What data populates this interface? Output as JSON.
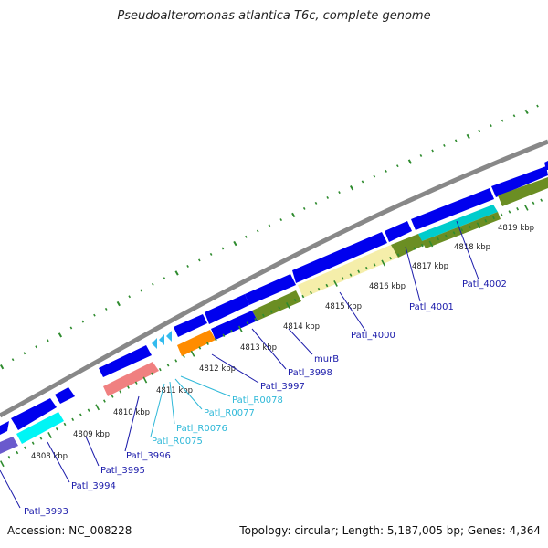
{
  "title": "Pseudoalteromonas atlantica T6c, complete genome",
  "accession": "Accession: NC_008228",
  "summary": "Topology: circular; Length: 5,187,005 bp; Genes: 4,364",
  "colors": {
    "cds": "#0000ee",
    "trna": "#33ccee",
    "backbone": "#888888",
    "tick": "#2e8b2e",
    "gene_label": "#1a1aaa",
    "rna_label": "#2eb8d8",
    "kbp_label": "#222222"
  },
  "kbp_ticks": [
    "4808 kbp",
    "4809 kbp",
    "4810 kbp",
    "4811 kbp",
    "4812 kbp",
    "4813 kbp",
    "4814 kbp",
    "4815 kbp",
    "4816 kbp",
    "4817 kbp",
    "4818 kbp",
    "4819 kbp"
  ],
  "gene_labels": [
    {
      "text": "Patl_3993",
      "kind": "gene"
    },
    {
      "text": "Patl_3994",
      "kind": "gene"
    },
    {
      "text": "Patl_3995",
      "kind": "gene"
    },
    {
      "text": "Patl_3996",
      "kind": "gene"
    },
    {
      "text": "Patl_R0075",
      "kind": "rna"
    },
    {
      "text": "Patl_R0076",
      "kind": "rna"
    },
    {
      "text": "Patl_R0077",
      "kind": "rna"
    },
    {
      "text": "Patl_R0078",
      "kind": "rna"
    },
    {
      "text": "Patl_3997",
      "kind": "gene"
    },
    {
      "text": "Patl_3998",
      "kind": "gene"
    },
    {
      "text": "murB",
      "kind": "gene"
    },
    {
      "text": "Patl_4000",
      "kind": "gene"
    },
    {
      "text": "Patl_4001",
      "kind": "gene"
    },
    {
      "text": "Patl_4002",
      "kind": "gene"
    }
  ]
}
